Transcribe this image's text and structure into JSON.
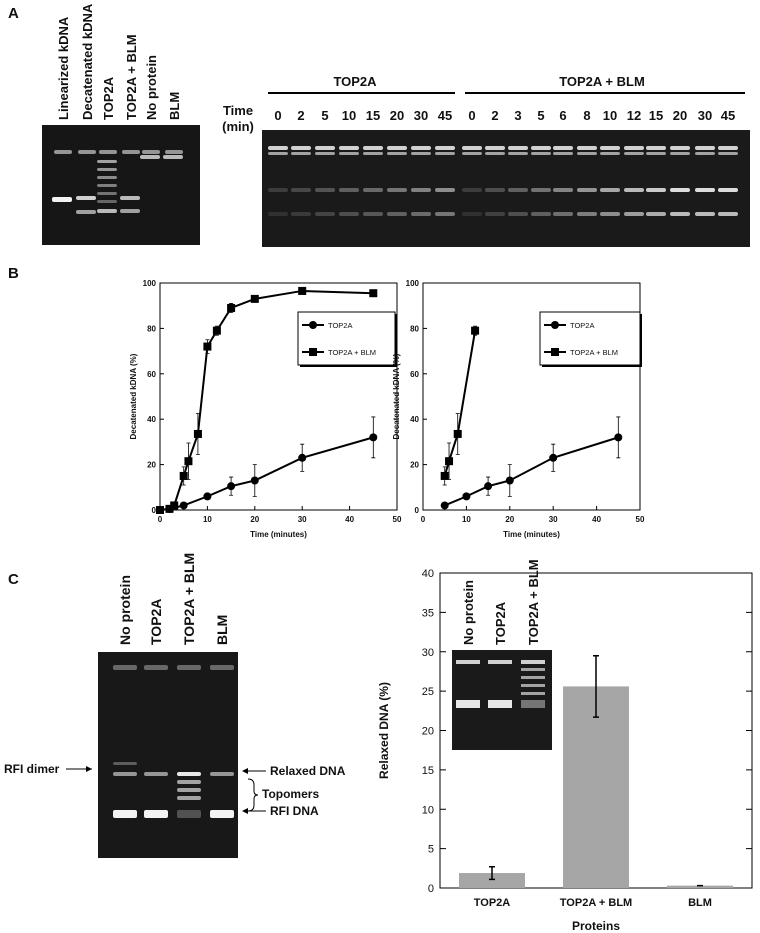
{
  "panels": [
    "A",
    "B",
    "C"
  ],
  "gel_a": {
    "lanes": [
      "Linearized kDNA",
      "Decatenated kDNA",
      "TOP2A",
      "TOP2A + BLM",
      "No protein",
      "BLM"
    ]
  },
  "gel_time": {
    "groups": [
      "TOP2A",
      "TOP2A + BLM"
    ],
    "time_label": [
      "Time",
      "(min)"
    ],
    "times_top2a": [
      0,
      2,
      5,
      10,
      15,
      20,
      30,
      45
    ],
    "times_blm": [
      0,
      2,
      3,
      5,
      6,
      8,
      10,
      12,
      15,
      20,
      30,
      45
    ]
  },
  "gel_c": {
    "lanes": [
      "No protein",
      "TOP2A",
      "TOP2A + BLM",
      "BLM"
    ],
    "left_labels": [
      "RFI dimer"
    ],
    "right_labels": [
      "Relaxed DNA",
      "Topomers",
      "RFI DNA"
    ]
  },
  "inset_gel": {
    "lanes": [
      "No protein",
      "TOP2A",
      "TOP2A + BLM"
    ]
  },
  "chart_data": [
    {
      "type": "line",
      "xlabel": "Time (minutes)",
      "ylabel": "Decatenated kDNA (%)",
      "xlim": [
        0,
        50
      ],
      "ylim": [
        0,
        100
      ],
      "xticks": [
        0,
        10,
        20,
        30,
        40,
        50
      ],
      "yticks": [
        0,
        20,
        40,
        60,
        80,
        100
      ],
      "series": [
        {
          "name": "TOP2A",
          "color": "#000000",
          "marker": "circle",
          "x": [
            0,
            2,
            5,
            10,
            15,
            20,
            30,
            45
          ],
          "values": [
            0,
            0.5,
            2,
            6,
            10.5,
            13,
            23,
            32
          ],
          "errors": [
            0,
            0,
            0,
            1,
            4,
            7,
            6,
            9
          ]
        },
        {
          "name": "TOP2A + BLM",
          "color": "#000000",
          "marker": "square",
          "x": [
            0,
            2,
            3,
            5,
            6,
            8,
            10,
            12,
            15,
            20,
            30,
            45
          ],
          "values": [
            0,
            0.5,
            2,
            15,
            21.5,
            33.5,
            72,
            79,
            89,
            93,
            96.5,
            95.5
          ],
          "errors": [
            0,
            0,
            1,
            4,
            8,
            9,
            3,
            2,
            2,
            1,
            1,
            1
          ]
        }
      ]
    },
    {
      "type": "line",
      "xlabel": "Time (minutes)",
      "ylabel": "Decatenated kDNA (%)",
      "xlim": [
        0,
        50
      ],
      "ylim": [
        0,
        100
      ],
      "xticks": [
        0,
        10,
        20,
        30,
        40,
        50
      ],
      "yticks": [
        0,
        20,
        40,
        60,
        80,
        100
      ],
      "series": [
        {
          "name": "TOP2A",
          "color": "#000000",
          "marker": "circle",
          "x": [
            5,
            10,
            15,
            20,
            30,
            45
          ],
          "values": [
            2,
            6,
            10.5,
            13,
            23,
            32
          ],
          "errors": [
            0,
            1,
            4,
            7,
            6,
            9
          ]
        },
        {
          "name": "TOP2A + BLM",
          "color": "#000000",
          "marker": "square",
          "x": [
            5,
            6,
            8,
            12
          ],
          "values": [
            15,
            21.5,
            33.5,
            79
          ],
          "errors": [
            4,
            8,
            9,
            2
          ]
        }
      ]
    },
    {
      "type": "bar",
      "xlabel": "Proteins",
      "ylabel": "Relaxed DNA (%)",
      "categories": [
        "TOP2A",
        "TOP2A + BLM",
        "BLM"
      ],
      "values": [
        1.9,
        25.6,
        0.3
      ],
      "errors": [
        0.8,
        3.9,
        0
      ],
      "color": "#a6a6a6",
      "ylim": [
        0,
        40
      ],
      "yticks": [
        0,
        5,
        10,
        15,
        20,
        25,
        30,
        35,
        40
      ]
    }
  ]
}
